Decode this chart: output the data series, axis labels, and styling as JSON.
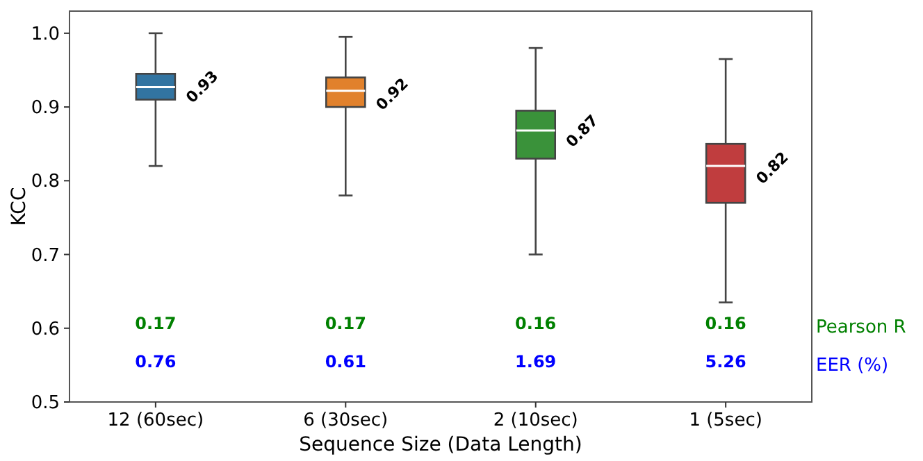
{
  "chart_data": {
    "type": "box",
    "ylabel": "KCC",
    "xlabel": "Sequence Size (Data Length)",
    "categories": [
      "12 (60sec)",
      "6 (30sec)",
      "2 (10sec)",
      "1 (5sec)"
    ],
    "colors": [
      "#3274a1",
      "#e1812c",
      "#3a923a",
      "#c03d3e"
    ],
    "boxes": [
      {
        "low": 0.82,
        "q1": 0.91,
        "median": 0.927,
        "q3": 0.945,
        "high": 1.0
      },
      {
        "low": 0.78,
        "q1": 0.9,
        "median": 0.922,
        "q3": 0.94,
        "high": 0.995
      },
      {
        "low": 0.7,
        "q1": 0.83,
        "median": 0.868,
        "q3": 0.895,
        "high": 0.98
      },
      {
        "low": 0.635,
        "q1": 0.77,
        "median": 0.82,
        "q3": 0.85,
        "high": 0.965
      }
    ],
    "ylim": [
      0.5,
      1.03
    ],
    "yticks": [
      0.5,
      0.6,
      0.7,
      0.8,
      0.9,
      {
        "value": 1.0,
        "label": "1.0"
      }
    ],
    "annotations": [
      {
        "text": "0.93",
        "x": "12 (60sec)",
        "y": 0.93
      },
      {
        "text": "0.92",
        "x": "6 (30sec)",
        "y": 0.92
      },
      {
        "text": "0.87",
        "x": "2 (10sec)",
        "y": 0.87
      },
      {
        "text": "0.82",
        "x": "1 (5sec)",
        "y": 0.82
      },
      "0.17",
      "0.17",
      "0.16",
      "0.16",
      "Pearson R",
      "0.76",
      "0.61",
      "1.69",
      "5.26",
      "EER (%)"
    ],
    "grid": false
  }
}
